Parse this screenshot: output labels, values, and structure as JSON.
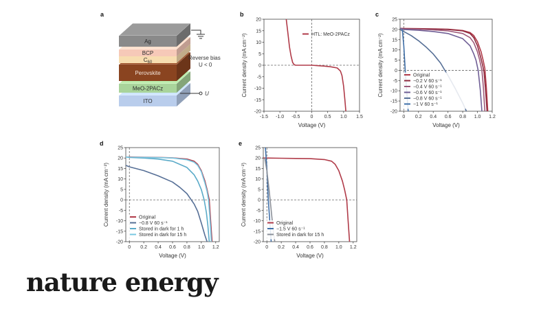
{
  "brand": "nature energy",
  "colors": {
    "red": "#b03a48",
    "darkred": "#8e2a3e",
    "mauve": "#9e5a7a",
    "purple": "#6f5e95",
    "slate": "#566f96",
    "blue": "#3f6fa8",
    "teal": "#5aaac8",
    "cyan": "#78c8e2",
    "grey": "#8a8f98",
    "ag": "#8a8a8a",
    "bcp": "#f6c9b8",
    "c60": "#f7ddb0",
    "perovskite": "#8a4420",
    "meo": "#a9d49b",
    "ito": "#b9cdec"
  },
  "panel_a": {
    "letter": "a",
    "layers": [
      "Ag",
      "BCP",
      "C60",
      "Perovskite",
      "MeO-2PACz",
      "ITO"
    ],
    "annotation_1": "Reverse bias",
    "annotation_2": "U < 0",
    "terminal": "U",
    "icons": [
      "ground-icon"
    ]
  },
  "chart_data": [
    {
      "panel": "b",
      "type": "line",
      "xlabel": "Voltage (V)",
      "ylabel": "Current density (mA cm⁻²)",
      "xlim": [
        -1.5,
        1.5
      ],
      "ylim": [
        -20,
        20
      ],
      "xticks": [
        "-1.5",
        "-1.0",
        "-0.5",
        "0",
        "0.5",
        "1.0",
        "1.5"
      ],
      "yticks": [
        "-20",
        "-15",
        "-10",
        "-5",
        "0",
        "5",
        "10",
        "15",
        "20"
      ],
      "legend_position": "top-right",
      "zero_lines": "dashed",
      "series": [
        {
          "name": "HTL: MeO-2PACz",
          "color": "#b03a48",
          "x": [
            -0.8,
            -0.75,
            -0.7,
            -0.65,
            -0.6,
            -0.55,
            -0.5,
            -0.4,
            -0.2,
            0.0,
            0.2,
            0.4,
            0.6,
            0.8,
            0.9,
            0.95,
            1.0,
            1.04,
            1.07
          ],
          "y": [
            20,
            14,
            8,
            4,
            1.2,
            0.2,
            0,
            0,
            0,
            0,
            -0.2,
            -0.4,
            -0.7,
            -1.2,
            -2.5,
            -4.5,
            -9,
            -15,
            -20
          ]
        }
      ]
    },
    {
      "panel": "c",
      "type": "line",
      "xlabel": "Voltage (V)",
      "ylabel": "Current density (mA cm⁻²)",
      "xlim": [
        -0.05,
        1.2
      ],
      "ylim": [
        -20,
        25
      ],
      "xticks": [
        "0",
        "0.2",
        "0.4",
        "0.6",
        "0.8",
        "1.0",
        "1.2"
      ],
      "yticks": [
        "-20",
        "-15",
        "-10",
        "-5",
        "0",
        "5",
        "10",
        "15",
        "20",
        "25"
      ],
      "legend_position": "bottom-left",
      "zero_lines": "dashed",
      "series": [
        {
          "name": "Original",
          "color": "#b03a48",
          "x": [
            -0.05,
            0,
            0.2,
            0.4,
            0.6,
            0.8,
            0.9,
            0.95,
            1.0,
            1.05,
            1.08,
            1.1,
            1.12,
            1.14
          ],
          "y": [
            20.5,
            20.5,
            20.4,
            20.3,
            20.1,
            19.5,
            18.5,
            17,
            14,
            9,
            4.5,
            1,
            -8,
            -20
          ]
        },
        {
          "name": "−0.2 V 60 s⁻¹",
          "color": "#8e2a3e",
          "x": [
            -0.05,
            0,
            0.2,
            0.4,
            0.6,
            0.8,
            0.9,
            0.95,
            1.0,
            1.04,
            1.07,
            1.09,
            1.11,
            1.13
          ],
          "y": [
            20.5,
            20.4,
            20.3,
            20.2,
            20,
            19.3,
            18,
            16,
            12,
            7,
            2.5,
            -1,
            -10,
            -20
          ]
        },
        {
          "name": "−0.4 V 60 s⁻¹",
          "color": "#9e5a7a",
          "x": [
            -0.05,
            0,
            0.2,
            0.4,
            0.6,
            0.8,
            0.9,
            0.95,
            1.0,
            1.03,
            1.06,
            1.08,
            1.1
          ],
          "y": [
            20.5,
            20.3,
            20.1,
            19.8,
            19.3,
            18,
            16,
            13.5,
            9,
            5,
            0,
            -8,
            -20
          ]
        },
        {
          "name": "−0.6 V 60 s⁻¹",
          "color": "#6f5e95",
          "x": [
            -0.05,
            0,
            0.2,
            0.4,
            0.6,
            0.8,
            0.9,
            0.95,
            0.98,
            1.01,
            1.04,
            1.06
          ],
          "y": [
            20.5,
            20,
            19.6,
            19,
            18,
            15.5,
            12,
            8,
            5,
            0,
            -10,
            -20
          ]
        },
        {
          "name": "−0.8 V 60 s⁻¹",
          "color": "#566f96",
          "x": [
            -0.05,
            0,
            0.1,
            0.2,
            0.3,
            0.4,
            0.5,
            0.55,
            0.6,
            0.7,
            0.8,
            0.85
          ],
          "y": [
            20,
            19,
            17,
            14.5,
            11.5,
            8,
            3.5,
            0.5,
            -2.5,
            -9,
            -16,
            -20
          ]
        },
        {
          "name": "−1 V 60 s⁻¹",
          "color": "#3f6fa8",
          "x": [
            -0.02,
            0,
            0.02,
            0.04,
            0.06
          ],
          "y": [
            20,
            12,
            0,
            -10,
            -20
          ]
        }
      ]
    },
    {
      "panel": "d",
      "type": "line",
      "xlabel": "Voltage (V)",
      "ylabel": "Current density (mA cm⁻²)",
      "xlim": [
        -0.05,
        1.25
      ],
      "ylim": [
        -20,
        25
      ],
      "xticks": [
        "0",
        "0.2",
        "0.4",
        "0.6",
        "0.8",
        "1.0",
        "1.2"
      ],
      "yticks": [
        "-20",
        "-15",
        "-10",
        "-5",
        "0",
        "5",
        "10",
        "15",
        "20",
        "25"
      ],
      "legend_position": "bottom-left",
      "zero_lines": "dashed",
      "series": [
        {
          "name": "Original",
          "color": "#b03a48",
          "x": [
            -0.05,
            0,
            0.2,
            0.4,
            0.6,
            0.8,
            0.9,
            0.95,
            1.0,
            1.05,
            1.08,
            1.11,
            1.13,
            1.15
          ],
          "y": [
            20.5,
            20.5,
            20.4,
            20.3,
            20.1,
            19.5,
            18.5,
            17,
            14,
            9,
            5,
            0,
            -10,
            -20
          ]
        },
        {
          "name": "−0.8 V 60 s⁻¹",
          "color": "#566f96",
          "x": [
            -0.05,
            0,
            0.2,
            0.4,
            0.6,
            0.7,
            0.8,
            0.9,
            0.95,
            1.0,
            1.05,
            1.08
          ],
          "y": [
            16.5,
            15.8,
            14,
            11.5,
            8.5,
            6,
            3,
            -2,
            -5.5,
            -11,
            -17,
            -20
          ]
        },
        {
          "name": "Stored in dark for 1 h",
          "color": "#5aaac8",
          "x": [
            -0.05,
            0,
            0.2,
            0.4,
            0.6,
            0.8,
            0.9,
            0.95,
            1.0,
            1.04,
            1.07,
            1.09,
            1.11
          ],
          "y": [
            20.5,
            20.3,
            20,
            19.5,
            18.5,
            15.5,
            12,
            9,
            5,
            0,
            -6,
            -12,
            -20
          ]
        },
        {
          "name": "Stored in dark for 15 h",
          "color": "#78c8e2",
          "x": [
            -0.05,
            0,
            0.2,
            0.4,
            0.6,
            0.8,
            0.9,
            0.95,
            1.0,
            1.05,
            1.08,
            1.1,
            1.12,
            1.14
          ],
          "y": [
            20.5,
            20.4,
            20.3,
            20.2,
            20,
            19.2,
            18,
            16.5,
            13.5,
            8,
            4,
            0,
            -9,
            -20
          ]
        }
      ]
    },
    {
      "panel": "e",
      "type": "line",
      "xlabel": "Voltage (V)",
      "ylabel": "Current density (mA cm⁻²)",
      "xlim": [
        -0.05,
        1.25
      ],
      "ylim": [
        -20,
        25
      ],
      "xticks": [
        "0",
        "0.2",
        "0.4",
        "0.6",
        "0.8",
        "1.0",
        "1.2"
      ],
      "yticks": [
        "-20",
        "-15",
        "-10",
        "-5",
        "0",
        "5",
        "10",
        "15",
        "20",
        "25"
      ],
      "legend_position": "bottom-left",
      "zero_lines": "dashed",
      "series": [
        {
          "name": "Original",
          "color": "#b03a48",
          "x": [
            -0.05,
            0,
            0.2,
            0.4,
            0.6,
            0.8,
            0.9,
            0.95,
            1.0,
            1.05,
            1.08,
            1.11,
            1.13,
            1.15
          ],
          "y": [
            20,
            20,
            19.9,
            19.8,
            19.7,
            19.3,
            18.5,
            17,
            14,
            9,
            5,
            0,
            -10,
            -20
          ]
        },
        {
          "name": "−1.5 V 60 s⁻¹",
          "color": "#3f6fa8",
          "x": [
            -0.02,
            0,
            0.02,
            0.04,
            0.06
          ],
          "y": [
            25,
            15,
            0,
            -10,
            -20
          ]
        },
        {
          "name": "Stored in dark for 15 h",
          "color": "#8a8f98",
          "x": [
            -0.03,
            0,
            0.03,
            0.06,
            0.09,
            0.11
          ],
          "y": [
            20,
            14,
            5,
            -5,
            -15,
            -20
          ]
        }
      ]
    }
  ]
}
